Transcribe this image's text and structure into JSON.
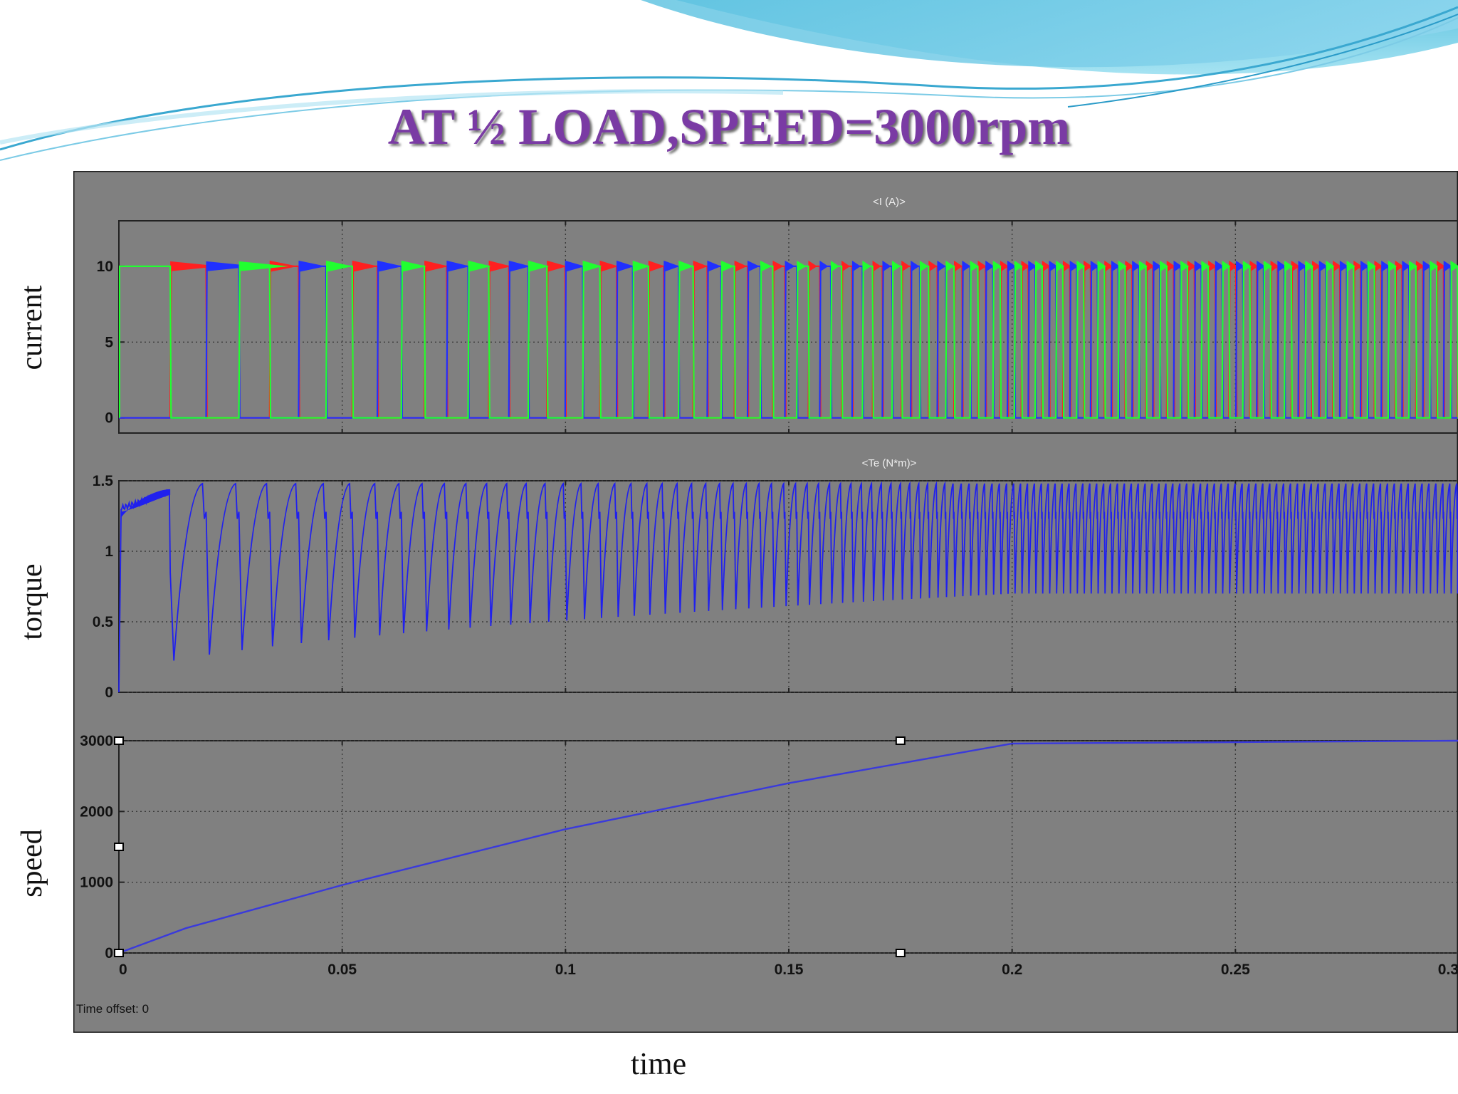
{
  "slide": {
    "title": "AT ½ LOAD,SPEED=3000rpm",
    "time_label": "time",
    "colors": {
      "title": "#7a3ba4",
      "scope_bg": "#808080",
      "wave_top": "#29b9d9"
    }
  },
  "scope": {
    "time_offset": "Time offset:  0"
  },
  "chart_data": [
    {
      "type": "line",
      "title": "<I (A)>",
      "side_label": "current",
      "xlim": [
        0,
        0.3
      ],
      "ylim": [
        -1,
        13
      ],
      "yticks": [
        "0",
        "5",
        "10"
      ],
      "ytick_values": [
        0,
        5,
        10
      ],
      "series": [
        {
          "color": "#ff2020",
          "phase": 0
        },
        {
          "color": "#2030ff",
          "phase": 1
        },
        {
          "color": "#20ff30",
          "phase": 2
        }
      ],
      "high_value": 10,
      "low_value": 0,
      "first_commutation_s": 0.0115
    },
    {
      "type": "line",
      "title": "<Te (N*m)>",
      "side_label": "torque",
      "xlim": [
        0,
        0.3
      ],
      "ylim": [
        0,
        1.5
      ],
      "yticks": [
        "0",
        "0.5",
        "1",
        "1.5"
      ],
      "ytick_values": [
        0,
        0.5,
        1,
        1.5
      ],
      "series": [
        {
          "color": "#2020ee"
        }
      ],
      "startup_value": 1.3,
      "ripple_max": 1.48,
      "ripple_min_start": 0.1,
      "ripple_min_end": 0.7
    },
    {
      "type": "line",
      "title": "",
      "side_label": "speed",
      "xlim": [
        0,
        0.3
      ],
      "ylim": [
        0,
        3000
      ],
      "yticks": [
        "0",
        "1000",
        "2000",
        "3000"
      ],
      "ytick_values": [
        0,
        1000,
        2000,
        3000
      ],
      "xticks": [
        "0",
        "0.05",
        "0.1",
        "0.15",
        "0.2",
        "0.25",
        "0.3"
      ],
      "xtick_values": [
        0,
        0.05,
        0.1,
        0.15,
        0.2,
        0.25,
        0.3
      ],
      "series": [
        {
          "color": "#3a3adb"
        }
      ],
      "points": [
        [
          0,
          0
        ],
        [
          0.015,
          350
        ],
        [
          0.05,
          960
        ],
        [
          0.1,
          1750
        ],
        [
          0.15,
          2400
        ],
        [
          0.2,
          2960
        ],
        [
          0.25,
          2980
        ],
        [
          0.3,
          3000
        ]
      ]
    }
  ]
}
